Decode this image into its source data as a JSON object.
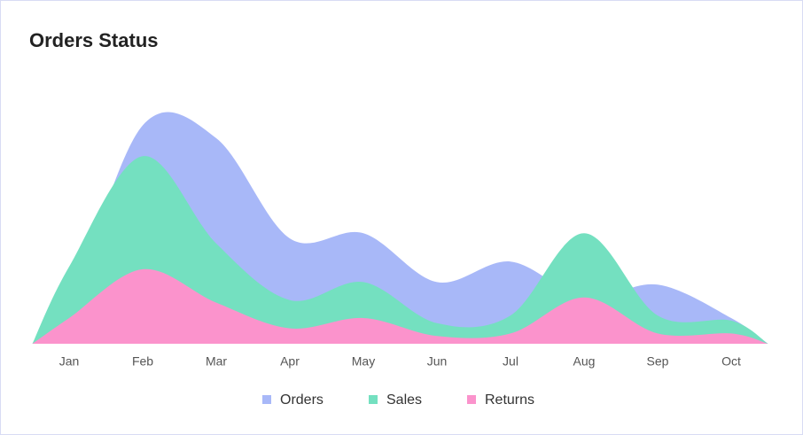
{
  "chart_data": {
    "type": "area",
    "title": "Orders Status",
    "categories": [
      "Jan",
      "Feb",
      "Mar",
      "Apr",
      "May",
      "Jun",
      "Jul",
      "Aug",
      "Sep",
      "Oct"
    ],
    "ylim": [
      0,
      100
    ],
    "legend": "bottom",
    "series": [
      {
        "name": "Orders",
        "color": "#a8b8f8",
        "values": [
          15,
          85,
          80,
          41,
          43,
          24,
          32,
          18,
          23,
          10
        ]
      },
      {
        "name": "Sales",
        "color": "#74e0c0",
        "values": [
          30,
          73,
          39,
          17,
          24,
          8,
          11,
          43,
          11,
          9
        ]
      },
      {
        "name": "Returns",
        "color": "#fb93cc",
        "values": [
          10,
          29,
          16,
          6,
          10,
          3,
          4,
          18,
          4,
          4
        ]
      }
    ]
  }
}
